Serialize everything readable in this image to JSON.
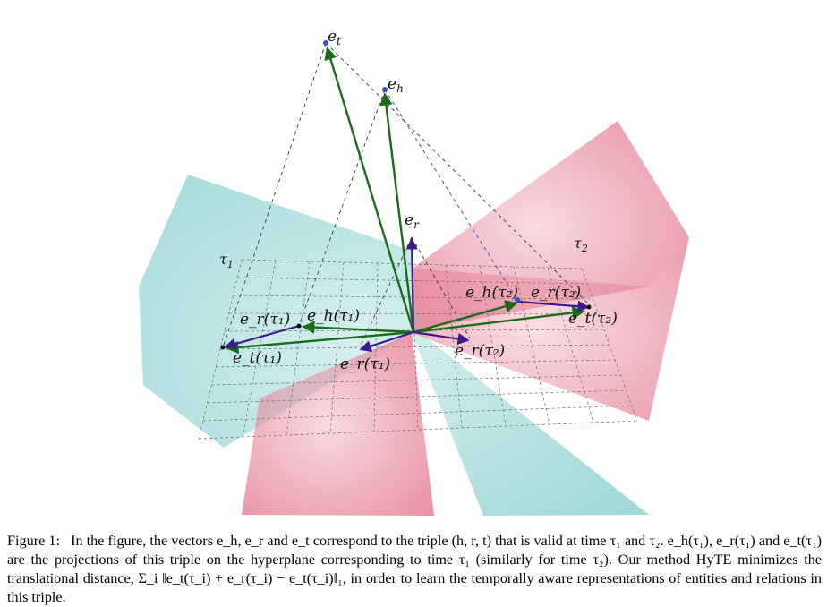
{
  "figure": {
    "labels": {
      "e_t": "e",
      "e_t_sub": "t",
      "e_h": "e",
      "e_h_sub": "h",
      "e_r": "e",
      "e_r_sub": "r",
      "tau1": "τ",
      "tau1_sub": "1",
      "tau2": "τ",
      "tau2_sub": "2",
      "er_tau1_top": "e_r(τ₁)",
      "eh_tau1": "e_h(τ₁)",
      "et_tau1": "e_t(τ₁)",
      "er_tau1_bottom": "e_r(τ₁)",
      "eh_tau2": "e_h(τ₂)",
      "er_tau2_top": "e_r(τ₂)",
      "et_tau2": "e_t(τ₂)",
      "er_tau2_bottom": "e_r(τ₂)"
    },
    "colors": {
      "plane1": "#8fd3d1",
      "plane2": "#e7879b",
      "vector_green": "#1b6b1b",
      "vector_purple": "#3d1a8c",
      "point_blue": "#3a4bd6"
    }
  },
  "caption": {
    "label": "Figure 1:",
    "text": "In the figure, the vectors e_h, e_r and e_t correspond to the triple (h, r, t) that is valid at time τ₁ and τ₂. e_h(τ₁), e_r(τ₁) and e_t(τ₁) are the projections of this triple on the hyperplane corresponding to time τ₁ (similarly for time τ₂). Our method HyTE minimizes the translational distance, Σ_i ‖e_t(τ_i) + e_r(τ_i) − e_t(τ_i)‖₁, in order to learn the temporally aware representations of entities and relations in this triple."
  }
}
